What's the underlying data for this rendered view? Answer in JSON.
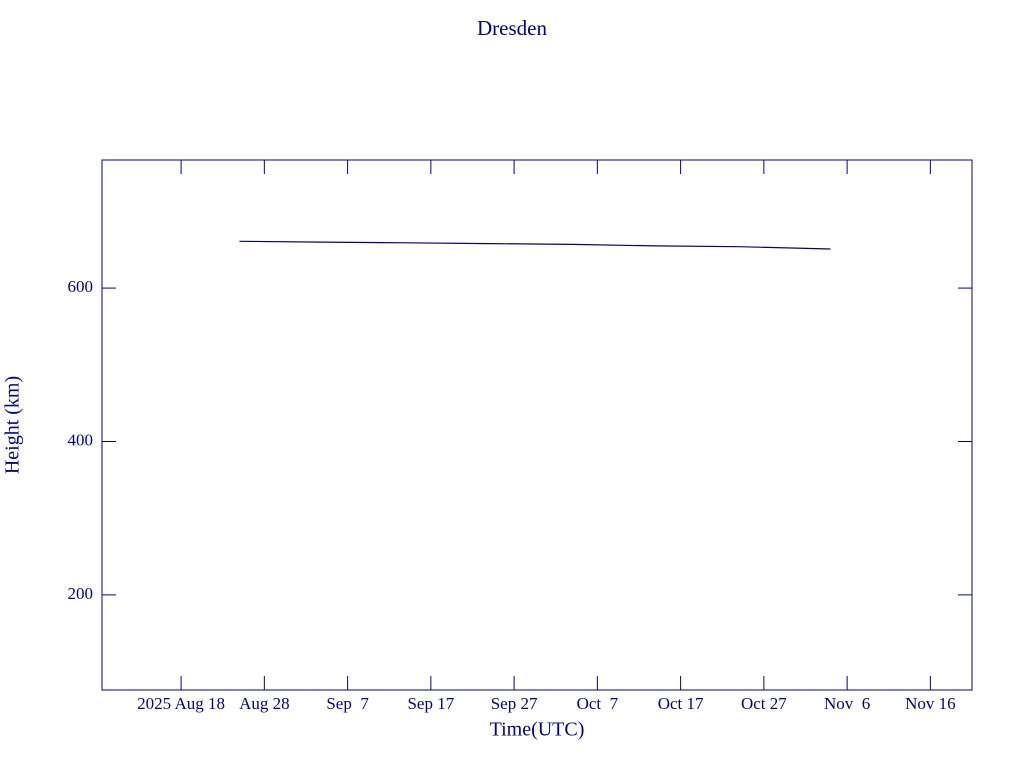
{
  "chart_data": {
    "type": "line",
    "title": "Dresden",
    "x_label": "Time(UTC)",
    "y_label": "Height (km)",
    "x": [
      "2025-08-25",
      "2025-09-04",
      "2025-09-14",
      "2025-09-24",
      "2025-10-04",
      "2025-10-14",
      "2025-10-24",
      "2025-11-04"
    ],
    "values": [
      661,
      660,
      659,
      658,
      657,
      655,
      654,
      651
    ],
    "color": "#00008b",
    "xlim": [
      "2025-08-08T12:00Z",
      "2025-11-21T00:00Z"
    ],
    "xticks": [
      {
        "value": "2025-08-18",
        "label": "2025 Aug 18"
      },
      {
        "value": "2025-08-28",
        "label": "Aug 28"
      },
      {
        "value": "2025-09-07",
        "label": "Sep  7"
      },
      {
        "value": "2025-09-17",
        "label": "Sep 17"
      },
      {
        "value": "2025-09-27",
        "label": "Sep 27"
      },
      {
        "value": "2025-10-07",
        "label": "Oct  7"
      },
      {
        "value": "2025-10-17",
        "label": "Oct 17"
      },
      {
        "value": "2025-10-27",
        "label": "Oct 27"
      },
      {
        "value": "2025-11-06",
        "label": "Nov  6"
      },
      {
        "value": "2025-11-16",
        "label": "Nov 16"
      }
    ],
    "ylim": [
      76,
      767
    ],
    "yticks": [
      200,
      400,
      600
    ]
  }
}
